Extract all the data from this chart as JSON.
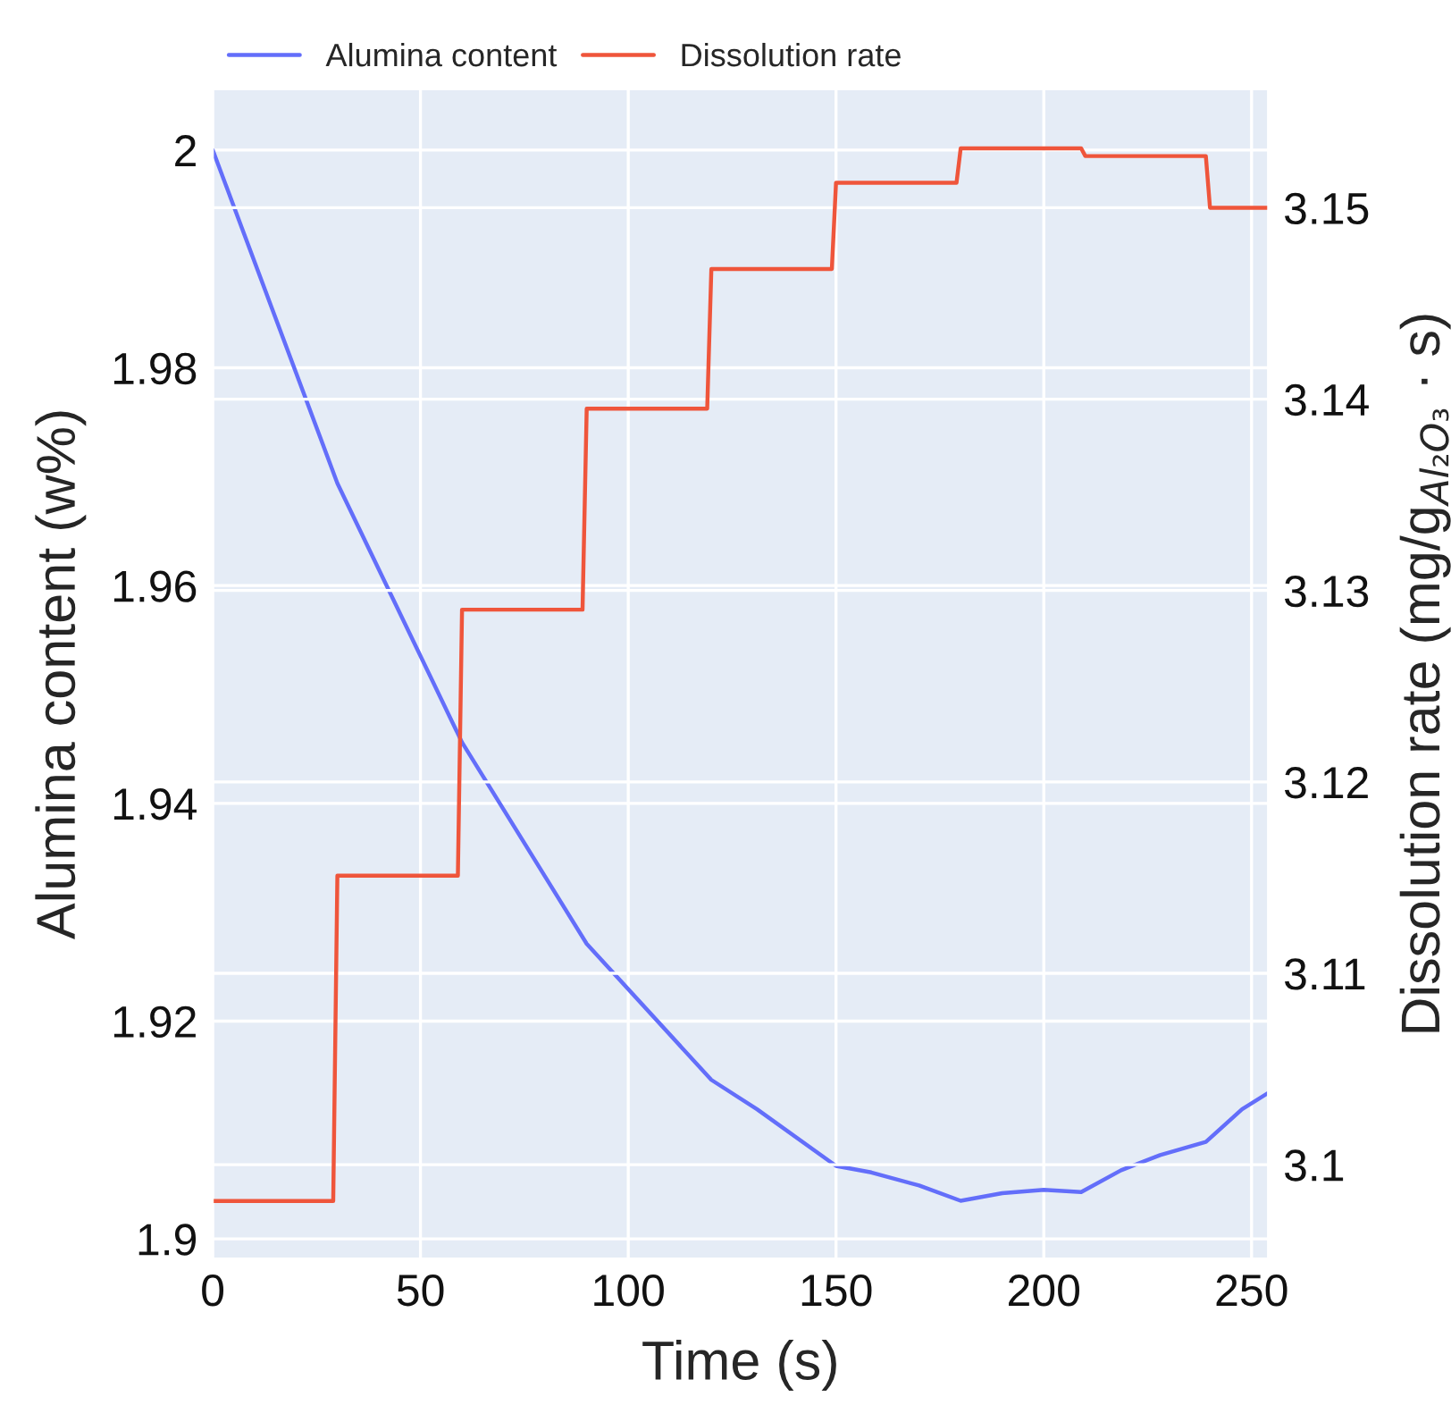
{
  "chart_data": {
    "type": "line",
    "xlabel": "Time (s)",
    "ylabel": "Alumina content (w%)",
    "y2label": "Dissolution rate (mg/g$_{Al₂O₃}$ · s)",
    "xlim": [
      0,
      254
    ],
    "xticks": [
      0,
      50,
      100,
      150,
      200,
      250
    ],
    "ylim": [
      1.8982,
      2.0056
    ],
    "yticks": [
      1.9,
      1.92,
      1.94,
      1.96,
      1.98,
      2
    ],
    "y2lim": [
      3.0951,
      3.1562
    ],
    "y2ticks": [
      3.1,
      3.11,
      3.12,
      3.13,
      3.14,
      3.15
    ],
    "grid": true,
    "legend": "top",
    "marker": "none",
    "line_style": "solid",
    "series": [
      {
        "name": "Alumina content",
        "color": "#636efa",
        "x": [
          0,
          30,
          60,
          90,
          120,
          131,
          150,
          158.5,
          170,
          180,
          190,
          200,
          209,
          218.6,
          228,
          239,
          247.7,
          254
        ],
        "values": [
          2.0,
          1.9694,
          1.9456,
          1.9271,
          1.9146,
          1.9119,
          1.9067,
          1.9061,
          1.9049,
          1.9035,
          1.9042,
          1.9045,
          1.9043,
          1.9063,
          1.9077,
          1.9089,
          1.9119,
          1.9134
        ]
      },
      {
        "name": "Dissolution rate",
        "color": "#ef553b",
        "axis": "y2",
        "x": [
          0,
          29,
          30,
          59,
          60,
          89,
          90,
          119,
          120,
          149,
          150,
          179,
          180,
          209,
          210,
          239,
          240,
          254
        ],
        "values": [
          3.0981,
          3.0981,
          3.1151,
          3.1151,
          3.129,
          3.129,
          3.1395,
          3.1395,
          3.1468,
          3.1468,
          3.1513,
          3.1513,
          3.1531,
          3.1531,
          3.1527,
          3.1527,
          3.15,
          3.15
        ]
      }
    ]
  }
}
